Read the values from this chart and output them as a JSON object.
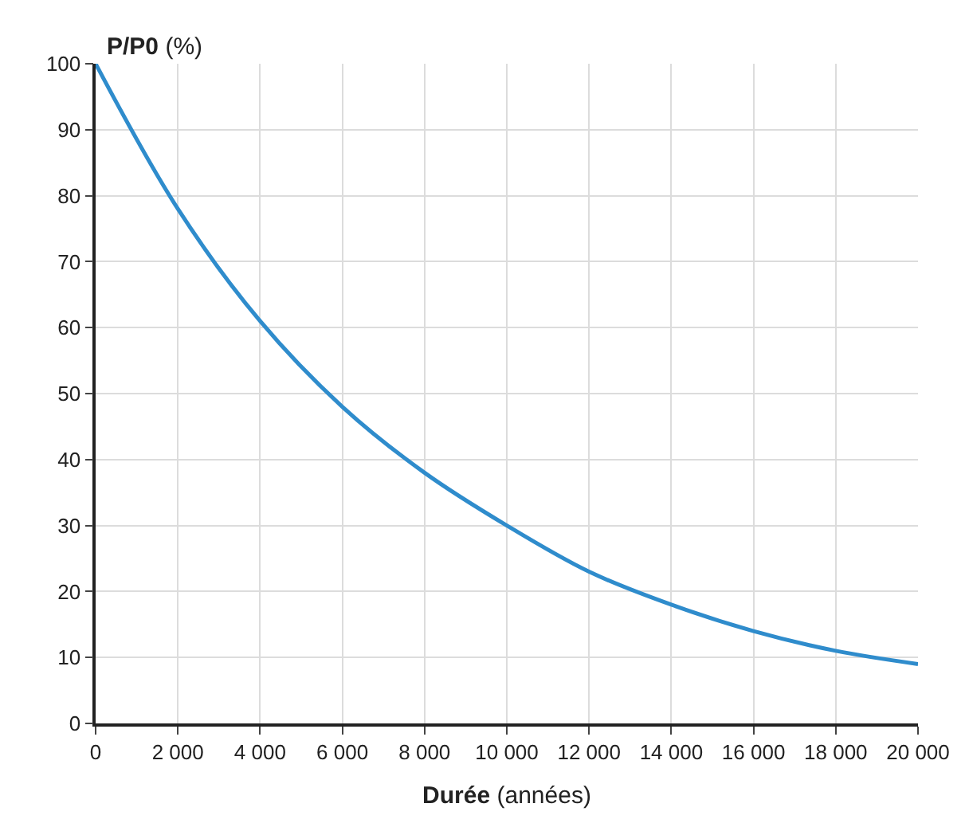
{
  "chart_data": {
    "type": "line",
    "xlabel": "Durée (années)",
    "ylabel": "P/P0 (%)",
    "x": [
      0,
      2000,
      4000,
      6000,
      8000,
      10000,
      12000,
      14000,
      16000,
      18000,
      20000
    ],
    "series": [
      {
        "color": "#2f8ccc",
        "values": [
          100,
          78,
          61,
          48,
          38,
          30,
          23,
          18,
          14,
          11,
          9
        ]
      }
    ],
    "xlim": [
      0,
      20000
    ],
    "xticks": [
      0,
      {
        "value": 2000,
        "label": "2 000"
      },
      {
        "value": 4000,
        "label": "4 000"
      },
      {
        "value": 6000,
        "label": "6 000"
      },
      {
        "value": 8000,
        "label": "8 000"
      },
      {
        "value": 10000,
        "label": "10 000"
      },
      {
        "value": 12000,
        "label": "12 000"
      },
      {
        "value": 14000,
        "label": "14 000"
      },
      {
        "value": 16000,
        "label": "16 000"
      },
      {
        "value": 18000,
        "label": "18 000"
      },
      {
        "value": 20000,
        "label": "20 000"
      }
    ],
    "ylim": [
      0,
      100
    ],
    "yticks": [
      0,
      10,
      20,
      30,
      40,
      50,
      60,
      70,
      80,
      90,
      100
    ],
    "grid": true,
    "marker": "none",
    "line_style": "solid"
  }
}
